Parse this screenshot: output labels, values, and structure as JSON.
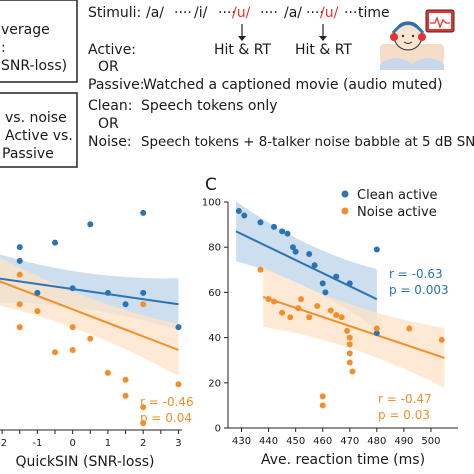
{
  "left_box": {
    "lines": [
      "verage",
      ":",
      "SNR-loss)"
    ]
  },
  "design": {
    "stimuli_label": "Stimuli:",
    "tokens": [
      {
        "text": "/a/",
        "color": "#1a1a1a"
      },
      {
        "text": "····",
        "color": "#1a1a1a"
      },
      {
        "text": "/i/",
        "color": "#1a1a1a"
      },
      {
        "text": "····",
        "color": "#1a1a1a"
      },
      {
        "text": "/u/",
        "color": "#e8322b"
      },
      {
        "text": "····",
        "color": "#1a1a1a"
      },
      {
        "text": "/a/",
        "color": "#1a1a1a"
      },
      {
        "text": "····",
        "color": "#1a1a1a"
      },
      {
        "text": "/u/",
        "color": "#e8322b"
      },
      {
        "text": "····",
        "color": "#1a1a1a"
      },
      {
        "text": "time",
        "color": "#1a1a1a"
      }
    ],
    "hit_rt_1": "Hit & RT",
    "hit_rt_2": "Hit & RT",
    "active_label": "Active:",
    "or_1": "OR",
    "passive_label": "Passive:",
    "passive_text": "Watched a captioned movie (audio muted)",
    "clean_label": "Clean:",
    "clean_text": "Speech tokens only",
    "or_2": "OR",
    "noise_label": "Noise:",
    "noise_text": "Speech tokens + 8-talker noise babble at 5 dB SNR"
  },
  "left_box_2": {
    "lines": [
      "vs. noise",
      "Active vs.",
      "Passive"
    ]
  },
  "colors": {
    "clean": "#2a74b4",
    "noise": "#f28e2b",
    "clean_band": "#bcd3ea",
    "noise_band": "#fde3c6",
    "red": "#e8322b"
  },
  "chart_data": [
    {
      "type": "scatter",
      "panel": "B (partial)",
      "xlabel": "QuickSIN (SNR-loss)",
      "ylabel": "",
      "xlim": [
        -2.4,
        3.1
      ],
      "ylim": [
        0,
        105
      ],
      "xticks": [
        "-2",
        "-1.5",
        "-1",
        "-0.5",
        "0",
        "0.5",
        "1",
        "1.5",
        "2",
        "2.5",
        "3"
      ],
      "annotation": {
        "r": "r = -0.46",
        "p": "p = 0.04"
      },
      "series": [
        {
          "color": "clean",
          "points": [
            [
              -2.2,
              78
            ],
            [
              -1.5,
              80
            ],
            [
              -1.5,
              74
            ],
            [
              -1.0,
              60
            ],
            [
              -0.5,
              82
            ],
            [
              0.0,
              62
            ],
            [
              0.5,
              90
            ],
            [
              1.0,
              60
            ],
            [
              1.5,
              55
            ],
            [
              2.0,
              95
            ],
            [
              2.0,
              60
            ],
            [
              3.0,
              45
            ]
          ],
          "fit": {
            "x0": -2.4,
            "y0": 67,
            "x1": 3.0,
            "y1": 55
          }
        },
        {
          "color": "noise",
          "points": [
            [
              -2.2,
              58
            ],
            [
              -1.5,
              68
            ],
            [
              -1.5,
              55
            ],
            [
              -1.5,
              45
            ],
            [
              -1.0,
              52
            ],
            [
              -0.5,
              34
            ],
            [
              0.0,
              45
            ],
            [
              0.0,
              35
            ],
            [
              0.5,
              40
            ],
            [
              1.0,
              25
            ],
            [
              1.5,
              22
            ],
            [
              1.5,
              15
            ],
            [
              2.0,
              55
            ],
            [
              2.0,
              10
            ],
            [
              2.0,
              3
            ],
            [
              3.0,
              20
            ]
          ],
          "fit": {
            "x0": -2.4,
            "y0": 67,
            "x1": 3.0,
            "y1": 35
          }
        }
      ]
    },
    {
      "type": "scatter",
      "panel": "C",
      "xlabel": "Ave. reaction time (ms)",
      "ylabel": "",
      "xlim": [
        425,
        510
      ],
      "ylim": [
        0,
        100
      ],
      "xticks": [
        "430",
        "440",
        "450",
        "460",
        "470",
        "480",
        "490",
        "500"
      ],
      "yticks": [
        "0",
        "20",
        "40",
        "60",
        "80",
        "100"
      ],
      "legend": [
        "Clean active",
        "Noise active"
      ],
      "annotations": [
        {
          "series": "clean",
          "r": "r = -0.63",
          "p": "p = 0.003"
        },
        {
          "series": "noise",
          "r": "r = -0.47",
          "p": "p = 0.03"
        }
      ],
      "series": [
        {
          "name": "Clean active",
          "color": "clean",
          "points": [
            [
              429,
              96
            ],
            [
              431,
              94
            ],
            [
              437,
              91
            ],
            [
              442,
              89
            ],
            [
              445,
              87
            ],
            [
              447,
              86
            ],
            [
              449,
              80
            ],
            [
              450,
              78
            ],
            [
              455,
              77
            ],
            [
              457,
              72
            ],
            [
              460,
              64
            ],
            [
              461,
              60
            ],
            [
              465,
              67
            ],
            [
              470,
              64
            ],
            [
              480,
              79
            ],
            [
              480,
              42
            ]
          ],
          "fit": {
            "x0": 428,
            "y0": 87,
            "x1": 480,
            "y1": 57
          }
        },
        {
          "name": "Noise active",
          "color": "noise",
          "points": [
            [
              437,
              70
            ],
            [
              440,
              57
            ],
            [
              442,
              56
            ],
            [
              445,
              51
            ],
            [
              448,
              49
            ],
            [
              451,
              53
            ],
            [
              452,
              57
            ],
            [
              455,
              49
            ],
            [
              458,
              54
            ],
            [
              460,
              14
            ],
            [
              460,
              10
            ],
            [
              463,
              52
            ],
            [
              465,
              50
            ],
            [
              467,
              49
            ],
            [
              469,
              43
            ],
            [
              470,
              40
            ],
            [
              470,
              37
            ],
            [
              470,
              33
            ],
            [
              470,
              29
            ],
            [
              471,
              25
            ],
            [
              480,
              44
            ],
            [
              492,
              44
            ],
            [
              504,
              39
            ]
          ],
          "fit": {
            "x0": 438,
            "y0": 58,
            "x1": 505,
            "y1": 31
          }
        }
      ]
    }
  ]
}
